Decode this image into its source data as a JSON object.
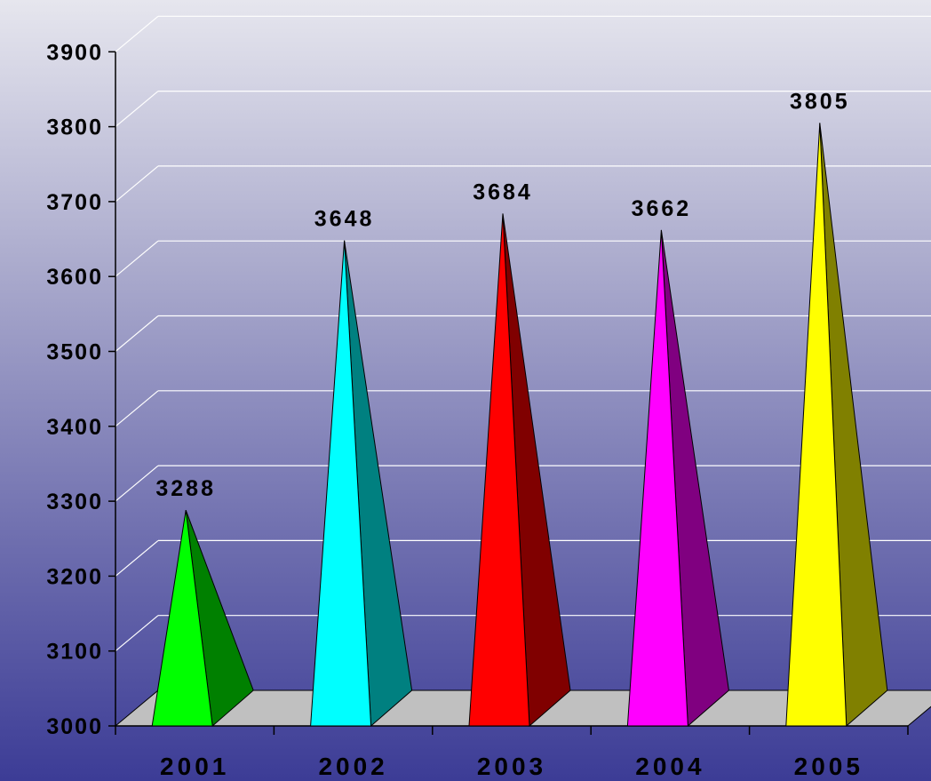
{
  "chart_data": {
    "type": "bar",
    "style": "3d-pyramid",
    "categories": [
      "2001",
      "2002",
      "2003",
      "2004",
      "2005"
    ],
    "values": [
      3288,
      3648,
      3684,
      3662,
      3805
    ],
    "data_labels": [
      "3288",
      "3648",
      "3684",
      "3662",
      "3805"
    ],
    "ylim": [
      3000,
      3900
    ],
    "yticks": [
      "3000",
      "3100",
      "3200",
      "3300",
      "3400",
      "3500",
      "3600",
      "3700",
      "3800",
      "3900"
    ],
    "grid": true,
    "legend": "none",
    "title": "",
    "xlabel": "",
    "ylabel": "",
    "colors": [
      {
        "front": "#00ff00",
        "side": "#008000"
      },
      {
        "front": "#00ffff",
        "side": "#008080"
      },
      {
        "front": "#ff0000",
        "side": "#800000"
      },
      {
        "front": "#ff00ff",
        "side": "#800080"
      },
      {
        "front": "#ffff00",
        "side": "#808000"
      }
    ],
    "floor_color": "#c0c0c0"
  }
}
